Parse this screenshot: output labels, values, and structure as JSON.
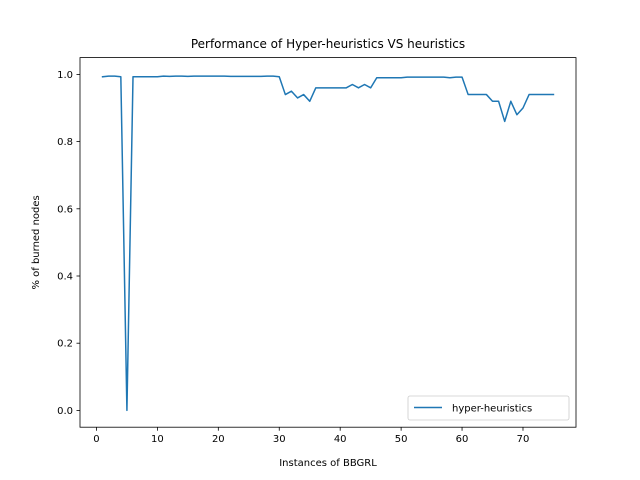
{
  "chart_data": {
    "type": "line",
    "title": "Performance of Hyper-heuristics VS heuristics",
    "xlabel": "Instances of BBGRL",
    "ylabel": "% of burned nodes",
    "xlim": [
      -2.7,
      78.7
    ],
    "ylim": [
      -0.05,
      1.05
    ],
    "xticks": [
      0,
      10,
      20,
      30,
      40,
      50,
      60,
      70
    ],
    "yticks": [
      0.0,
      0.2,
      0.4,
      0.6,
      0.8,
      1.0
    ],
    "xtick_labels": [
      "0",
      "10",
      "20",
      "30",
      "40",
      "50",
      "60",
      "70"
    ],
    "ytick_labels": [
      "0.0",
      "0.2",
      "0.4",
      "0.6",
      "0.8",
      "1.0"
    ],
    "grid": false,
    "legend_position": "lower-right",
    "series": [
      {
        "name": "hyper-heuristics",
        "color": "#1f77b4",
        "x": [
          1,
          2,
          3,
          4,
          5,
          6,
          7,
          8,
          9,
          10,
          11,
          12,
          13,
          14,
          15,
          16,
          17,
          18,
          19,
          20,
          21,
          22,
          23,
          24,
          25,
          26,
          27,
          28,
          29,
          30,
          31,
          32,
          33,
          34,
          35,
          36,
          37,
          38,
          39,
          40,
          41,
          42,
          43,
          44,
          45,
          46,
          47,
          48,
          49,
          50,
          51,
          52,
          53,
          54,
          55,
          56,
          57,
          58,
          59,
          60,
          61,
          62,
          63,
          64,
          65,
          66,
          67,
          68,
          69,
          70,
          71,
          72,
          73,
          74,
          75
        ],
        "y": [
          0.993,
          0.995,
          0.995,
          0.993,
          0.0,
          0.993,
          0.993,
          0.993,
          0.993,
          0.993,
          0.995,
          0.994,
          0.995,
          0.995,
          0.994,
          0.995,
          0.995,
          0.995,
          0.995,
          0.995,
          0.995,
          0.994,
          0.994,
          0.994,
          0.994,
          0.994,
          0.994,
          0.995,
          0.995,
          0.993,
          0.94,
          0.95,
          0.93,
          0.94,
          0.92,
          0.96,
          0.96,
          0.96,
          0.96,
          0.96,
          0.96,
          0.97,
          0.96,
          0.97,
          0.96,
          0.99,
          0.99,
          0.99,
          0.99,
          0.99,
          0.992,
          0.992,
          0.992,
          0.992,
          0.992,
          0.992,
          0.992,
          0.99,
          0.992,
          0.992,
          0.94,
          0.94,
          0.94,
          0.94,
          0.92,
          0.92,
          0.86,
          0.92,
          0.88,
          0.9,
          0.94,
          0.94,
          0.94,
          0.94,
          0.94
        ]
      }
    ]
  }
}
